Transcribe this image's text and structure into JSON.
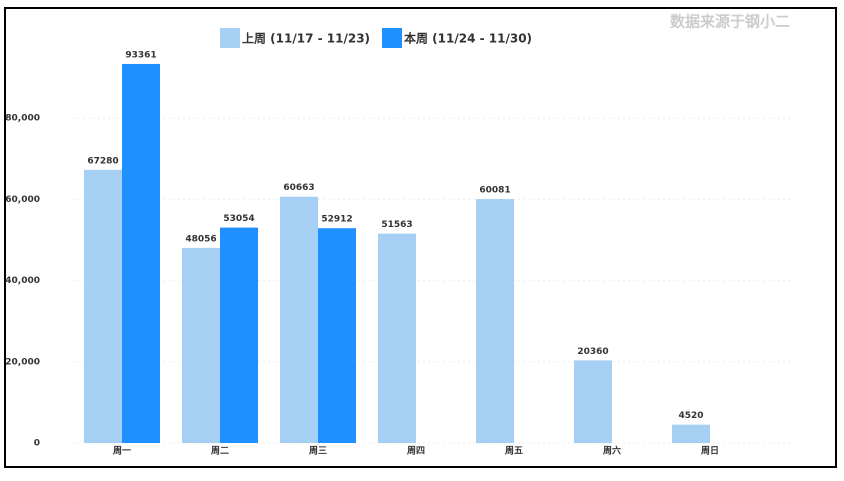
{
  "chart_data": {
    "type": "bar",
    "source": "数据来源于钢小二",
    "categories": [
      "周一",
      "周二",
      "周三",
      "周四",
      "周五",
      "周六",
      "周日"
    ],
    "series": [
      {
        "name": "上周 (11/17 - 11/23)",
        "color": "#a5d0f3",
        "values": [
          67280,
          48056,
          60663,
          51563,
          60081,
          20360,
          4520
        ]
      },
      {
        "name": "本周 (11/24 - 11/30)",
        "color": "#1e90ff",
        "values": [
          93361,
          53054,
          52912,
          null,
          null,
          null,
          null
        ]
      }
    ],
    "ylim": [
      0,
      100000
    ],
    "yticks": [
      0,
      {
        "value": 20000,
        "label": "20,000"
      },
      {
        "value": 40000,
        "label": "40,000"
      },
      {
        "value": 60000,
        "label": "60,000"
      },
      {
        "value": 80000,
        "label": "80,000"
      }
    ],
    "grid": true,
    "legend": "top"
  }
}
